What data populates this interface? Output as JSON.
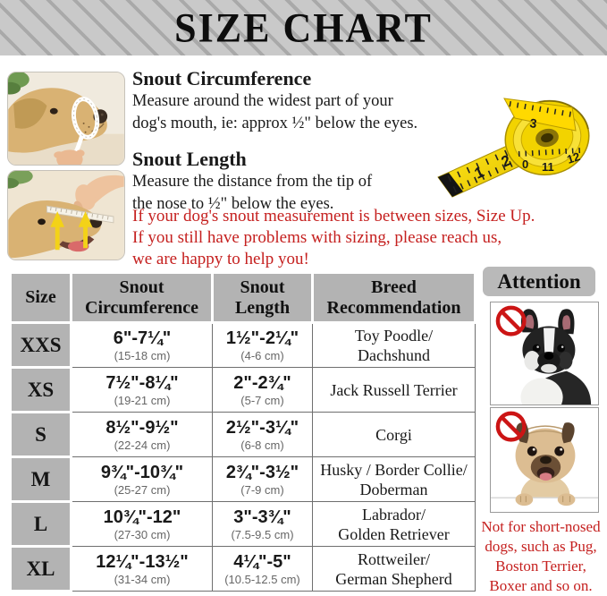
{
  "banner": {
    "title": "SIZE CHART"
  },
  "guide": {
    "circumference": {
      "heading": "Snout Circumference",
      "line1": "Measure around the widest part of your",
      "line2": "dog's mouth, ie: approx ½\" below the eyes."
    },
    "length": {
      "heading": "Snout Length",
      "line1": "Measure the distance from the tip of",
      "line2": "the nose to ½\" below the eyes."
    },
    "note_lines": [
      "If your dog's snout measurement is between sizes, Size Up.",
      "If you still have problems with sizing, please reach us,",
      "we are happy to help you!"
    ]
  },
  "table": {
    "headers": {
      "size": "Size",
      "circumference": [
        "Snout",
        "Circumference"
      ],
      "length": [
        "Snout",
        "Length"
      ],
      "breed": [
        "Breed",
        "Recommendation"
      ]
    },
    "rows": [
      {
        "size": "XXS",
        "circ_in": "6\"-7¼\"",
        "circ_cm": "(15-18 cm)",
        "len_in": "1½\"-2¼\"",
        "len_cm": "(4-6 cm)",
        "breed": [
          "Toy Poodle/",
          "Dachshund"
        ]
      },
      {
        "size": "XS",
        "circ_in": "7½\"-8¼\"",
        "circ_cm": "(19-21 cm)",
        "len_in": "2\"-2¾\"",
        "len_cm": "(5-7 cm)",
        "breed": [
          "Jack Russell Terrier"
        ]
      },
      {
        "size": "S",
        "circ_in": "8½\"-9½\"",
        "circ_cm": "(22-24 cm)",
        "len_in": "2½\"-3¼\"",
        "len_cm": "(6-8 cm)",
        "breed": [
          "Corgi"
        ]
      },
      {
        "size": "M",
        "circ_in": "9¾\"-10¾\"",
        "circ_cm": "(25-27 cm)",
        "len_in": "2¾\"-3½\"",
        "len_cm": "(7-9 cm)",
        "breed": [
          "Husky / Border Collie/",
          "Doberman"
        ]
      },
      {
        "size": "L",
        "circ_in": "10¾\"-12\"",
        "circ_cm": "(27-30 cm)",
        "len_in": "3\"-3¾\"",
        "len_cm": "(7.5-9.5 cm)",
        "breed": [
          "Labrador/",
          "Golden Retriever"
        ]
      },
      {
        "size": "XL",
        "circ_in": "12¼\"-13½\"",
        "circ_cm": "(31-34 cm)",
        "len_in": "4¼\"-5\"",
        "len_cm": "(10.5-12.5 cm)",
        "breed": [
          "Rottweiler/",
          "German Shepherd"
        ]
      }
    ]
  },
  "attention": {
    "title": "Attention",
    "note_lines": [
      "Not for short-nosed",
      "dogs, such as Pug,",
      "Boston Terrier,",
      "Boxer and so on."
    ]
  },
  "icons": {
    "prohibition": "no-symbol",
    "measure_arrows": "up-arrow"
  },
  "colors": {
    "red_text": "#c5201f",
    "table_gray": "#b3b3b3",
    "banner_gray": "#c9c9c9",
    "banner_stripe": "#a9a9a9",
    "tape_yellow": "#f2d300",
    "prohibition_red": "#cc1515"
  }
}
